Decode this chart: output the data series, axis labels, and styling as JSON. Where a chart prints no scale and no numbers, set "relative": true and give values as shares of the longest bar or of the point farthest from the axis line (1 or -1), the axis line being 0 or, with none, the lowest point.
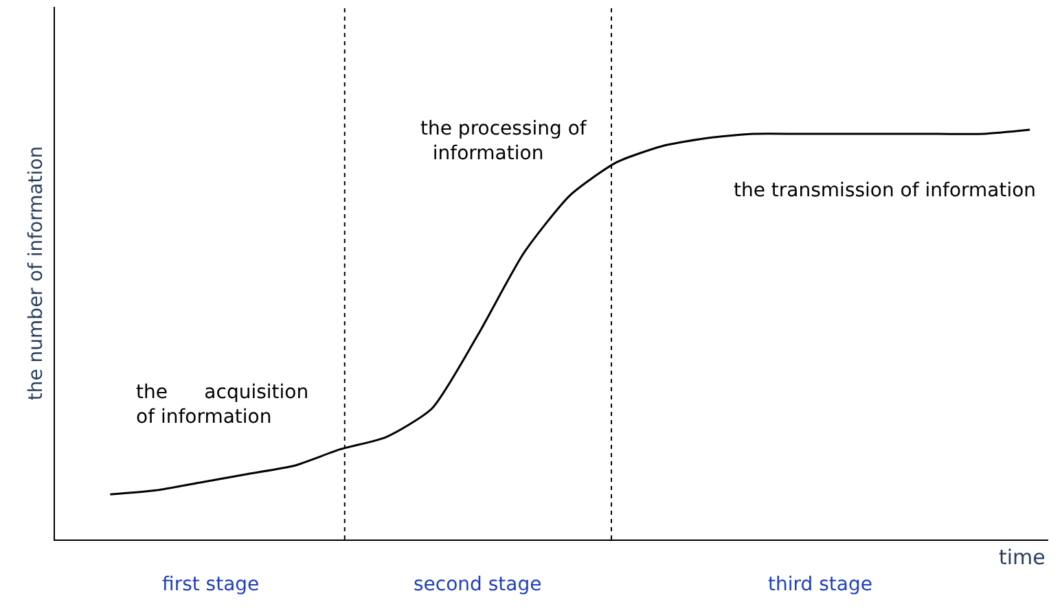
{
  "chart_data": {
    "type": "line",
    "relative": true,
    "xlabel": "time",
    "ylabel": "the number of information",
    "categories": [
      null,
      null,
      null,
      null,
      null,
      null,
      null,
      null,
      null,
      null,
      null,
      null,
      null,
      null,
      null,
      null,
      null,
      null,
      null,
      null,
      null
    ],
    "series": [
      {
        "color": "#000000",
        "values": [
          0.11,
          0.12,
          0.14,
          0.16,
          0.18,
          0.22,
          0.25,
          0.32,
          0.5,
          0.7,
          0.84,
          0.92,
          0.96,
          0.98,
          0.99,
          0.99,
          0.99,
          0.99,
          0.99,
          0.99,
          1.0
        ]
      }
    ],
    "annotations": [
      "the      acquisition\nof information",
      "the processing of\n  information",
      "the transmission of information",
      "first stage",
      "second stage",
      "third stage"
    ],
    "legend": false,
    "marker": "none",
    "line_style": "solid"
  }
}
